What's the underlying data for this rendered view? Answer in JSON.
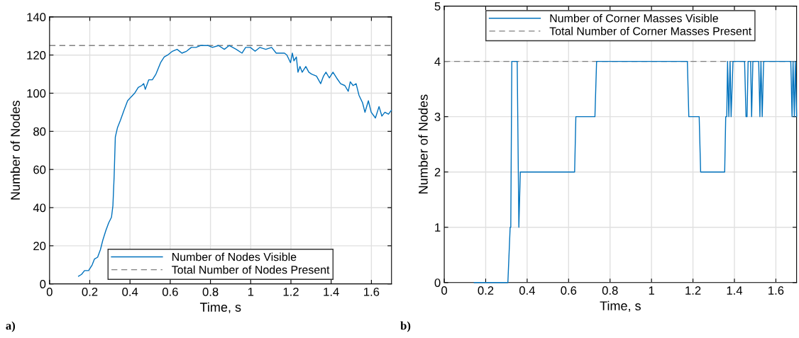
{
  "chart_data": [
    {
      "type": "line",
      "xlabel": "Time, s",
      "ylabel": "Number of Nodes",
      "xlim": [
        0,
        1.7
      ],
      "ylim": [
        0,
        140
      ],
      "xticks": [
        0,
        0.2,
        0.4,
        0.6,
        0.8,
        1,
        1.2,
        1.4,
        1.6
      ],
      "yticks": [
        0,
        20,
        40,
        60,
        80,
        100,
        120,
        140
      ],
      "grid": true,
      "legend": "bottom",
      "series": [
        {
          "name": "Number of Nodes Visible",
          "color": "#0072bd",
          "x": [
            0.144,
            0.159,
            0.174,
            0.194,
            0.212,
            0.223,
            0.239,
            0.253,
            0.265,
            0.28,
            0.294,
            0.308,
            0.315,
            0.321,
            0.327,
            0.338,
            0.353,
            0.37,
            0.388,
            0.405,
            0.423,
            0.441,
            0.458,
            0.468,
            0.476,
            0.493,
            0.511,
            0.529,
            0.552,
            0.57,
            0.587,
            0.611,
            0.634,
            0.658,
            0.681,
            0.705,
            0.728,
            0.752,
            0.787,
            0.81,
            0.84,
            0.869,
            0.893,
            0.928,
            0.957,
            0.975,
            0.998,
            1.022,
            1.045,
            1.075,
            1.104,
            1.127,
            1.151,
            1.168,
            1.18,
            1.198,
            1.207,
            1.215,
            1.227,
            1.235,
            1.245,
            1.256,
            1.274,
            1.289,
            1.303,
            1.327,
            1.348,
            1.362,
            1.374,
            1.391,
            1.409,
            1.427,
            1.447,
            1.468,
            1.485,
            1.495,
            1.509,
            1.524,
            1.538,
            1.556,
            1.568,
            1.585,
            1.599,
            1.62,
            1.638,
            1.652,
            1.667,
            1.685,
            1.699
          ],
          "values": [
            4,
            5,
            7,
            7,
            10,
            13,
            14,
            18,
            23,
            28,
            32,
            35,
            41,
            56,
            77,
            82,
            86,
            91,
            96,
            98,
            100,
            103,
            104,
            105,
            102,
            107,
            107,
            110,
            116,
            119,
            120,
            122,
            123,
            121,
            122,
            124,
            124,
            125,
            125,
            124,
            125,
            123,
            125,
            123,
            121,
            124,
            124,
            122,
            124,
            123,
            124,
            121,
            121,
            121,
            120,
            116,
            121,
            117,
            119,
            111,
            114,
            111,
            114,
            111,
            110,
            109,
            105,
            109,
            111,
            108,
            111,
            108,
            105,
            104,
            101,
            106,
            104,
            105,
            99,
            95,
            90,
            96,
            90,
            87,
            93,
            88,
            90,
            89,
            91
          ]
        }
      ],
      "ref_lines": [
        {
          "axis": "y",
          "value": 125,
          "label": "Total Number of Nodes Present",
          "color": "#808080",
          "line_style": "dashed"
        }
      ],
      "annotations": [
        "a)"
      ]
    },
    {
      "type": "line",
      "xlabel": "Time, s",
      "ylabel": "Number of Nodes",
      "xlim": [
        0,
        1.7
      ],
      "ylim": [
        0,
        5
      ],
      "xticks": [
        0,
        0.2,
        0.4,
        0.6,
        0.8,
        1,
        1.2,
        1.4,
        1.6
      ],
      "yticks": [
        0,
        1,
        2,
        3,
        4,
        5
      ],
      "grid": true,
      "legend": "top",
      "series": [
        {
          "name": "Number of Corner Masses Visible",
          "color": "#0072bd",
          "x": [
            0.145,
            0.307,
            0.318,
            0.321,
            0.326,
            0.352,
            0.36,
            0.367,
            0.629,
            0.635,
            0.727,
            0.735,
            1.173,
            1.18,
            1.23,
            1.237,
            1.353,
            1.358,
            1.363,
            1.367,
            1.373,
            1.379,
            1.384,
            1.393,
            1.449,
            1.456,
            1.461,
            1.466,
            1.478,
            1.483,
            1.489,
            1.517,
            1.523,
            1.528,
            1.534,
            1.541,
            1.672,
            1.678,
            1.683,
            1.689,
            1.694,
            1.7
          ],
          "values": [
            0,
            0,
            1,
            1,
            4,
            4,
            1,
            2,
            2,
            3,
            3,
            4,
            4,
            3,
            3,
            2,
            2,
            3,
            3,
            4,
            3,
            4,
            3,
            4,
            4,
            3,
            3,
            4,
            4,
            3,
            4,
            4,
            3,
            4,
            3,
            4,
            4,
            3,
            4,
            3,
            4,
            3
          ]
        }
      ],
      "ref_lines": [
        {
          "axis": "y",
          "value": 4,
          "label": "Total Number of Corner Masses Present",
          "color": "#808080",
          "line_style": "dashed"
        }
      ],
      "annotations": [
        "b)"
      ]
    }
  ]
}
